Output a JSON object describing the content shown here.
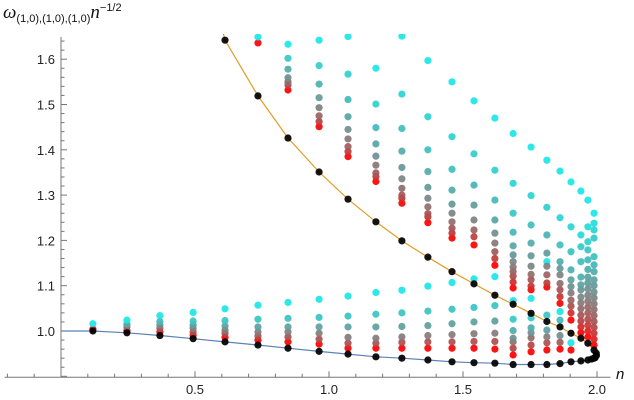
{
  "chart_data": {
    "type": "scatter",
    "title": "",
    "xlabel": "n",
    "ylabel": {
      "symbol": "ω",
      "subscript": "(1,0),(1,0),(1,0)",
      "base": "n",
      "exponent": "−1/2"
    },
    "xlim": [
      -0.21,
      2.05
    ],
    "ylim": [
      0.898,
      1.649
    ],
    "x_ticks": [
      "0.5",
      "1.0",
      "1.5",
      "2.0"
    ],
    "x_tick_values": [
      0.5,
      1.0,
      1.5,
      2.0
    ],
    "y_ticks": [
      "1.0",
      "1.1",
      "1.2",
      "1.3",
      "1.4",
      "1.5",
      "1.6"
    ],
    "y_tick_values": [
      1.0,
      1.1,
      1.2,
      1.3,
      1.4,
      1.5,
      1.6
    ],
    "grid": false,
    "colors": {
      "branch_points": "#000000",
      "lower_curve": "#5E81B5",
      "upper_curve": "#E19C24",
      "gradient": [
        "#FF0000",
        "#B04848",
        "#808080",
        "#4BB0B0",
        "#1AE6E6"
      ]
    },
    "lower_curve": [
      [
        0,
        1.0
      ],
      [
        0.119,
        1.0
      ],
      [
        0.246,
        0.996
      ],
      [
        0.369,
        0.99
      ],
      [
        0.493,
        0.983
      ],
      [
        0.612,
        0.976
      ],
      [
        0.735,
        0.969
      ],
      [
        0.847,
        0.962
      ],
      [
        0.963,
        0.955
      ],
      [
        1.071,
        0.949
      ],
      [
        1.175,
        0.943
      ],
      [
        1.272,
        0.94
      ],
      [
        1.369,
        0.936
      ],
      [
        1.459,
        0.932
      ],
      [
        1.541,
        0.93
      ],
      [
        1.619,
        0.929
      ],
      [
        1.687,
        0.926
      ],
      [
        1.754,
        0.926
      ],
      [
        1.813,
        0.926
      ],
      [
        1.862,
        0.928
      ],
      [
        1.903,
        0.932
      ],
      [
        1.94,
        0.934
      ],
      [
        1.966,
        0.936
      ],
      [
        1.989,
        0.94
      ]
    ],
    "upper_curve": [
      [
        0.6,
        1.67
      ],
      [
        0.612,
        1.642
      ],
      [
        0.735,
        1.519
      ],
      [
        0.847,
        1.426
      ],
      [
        0.963,
        1.351
      ],
      [
        1.071,
        1.291
      ],
      [
        1.175,
        1.241
      ],
      [
        1.272,
        1.199
      ],
      [
        1.369,
        1.163
      ],
      [
        1.459,
        1.131
      ],
      [
        1.541,
        1.104
      ],
      [
        1.619,
        1.079
      ],
      [
        1.687,
        1.059
      ],
      [
        1.754,
        1.039
      ],
      [
        1.813,
        1.021
      ],
      [
        1.862,
        1.009
      ],
      [
        1.903,
        0.995
      ],
      [
        1.94,
        0.984
      ],
      [
        1.966,
        0.973
      ],
      [
        1.989,
        0.958
      ]
    ],
    "turn_points": [
      [
        1.997,
        0.951
      ],
      [
        1.998,
        0.946
      ],
      [
        1.993,
        0.941
      ],
      [
        1.98,
        0.938
      ]
    ],
    "columns": [
      {
        "n": 0.119,
        "lower": 1.0,
        "lower_cluster": [
          1.004,
          1.016
        ],
        "upper": null,
        "upper_cluster": []
      },
      {
        "n": 0.246,
        "lower": 0.996,
        "lower_cluster": [
          1.001,
          1.009,
          1.015,
          1.024
        ],
        "upper": null,
        "upper_cluster": []
      },
      {
        "n": 0.369,
        "lower": 0.99,
        "lower_cluster": [
          0.998,
          1.006,
          1.013,
          1.021,
          1.034
        ],
        "upper": null,
        "upper_cluster": []
      },
      {
        "n": 0.493,
        "lower": 0.983,
        "lower_cluster": [
          0.991,
          0.998,
          1.006,
          1.013,
          1.022,
          1.041
        ],
        "upper": null,
        "upper_cluster": []
      },
      {
        "n": 0.612,
        "lower": 0.976,
        "lower_cluster": [
          0.986,
          0.995,
          1.002,
          1.011,
          1.023,
          1.049
        ],
        "upper": 1.642,
        "upper_cluster": []
      },
      {
        "n": 0.735,
        "lower": 0.969,
        "lower_cluster": [
          0.98,
          0.989,
          0.998,
          1.009,
          1.026,
          1.057
        ],
        "upper": 1.519,
        "upper_cluster": [
          1.636,
          1.649
        ]
      },
      {
        "n": 0.847,
        "lower": 0.962,
        "lower_cluster": [
          0.976,
          0.987,
          0.998,
          1.009,
          1.028,
          1.063
        ],
        "upper": 1.426,
        "upper_cluster": [
          1.532,
          1.543,
          1.55,
          1.559,
          1.578,
          1.602,
          1.633
        ]
      },
      {
        "n": 0.963,
        "lower": 0.955,
        "lower_cluster": [
          0.971,
          0.982,
          0.995,
          1.009,
          1.03,
          1.07
        ],
        "upper": 1.351,
        "upper_cluster": [
          1.451,
          1.462,
          1.475,
          1.493,
          1.515,
          1.545,
          1.586,
          1.642
        ]
      },
      {
        "n": 1.071,
        "lower": 0.949,
        "lower_cluster": [
          0.962,
          0.973,
          0.986,
          1.009,
          1.033,
          1.077
        ],
        "upper": 1.291,
        "upper_cluster": [
          1.385,
          1.396,
          1.407,
          1.424,
          1.445,
          1.473,
          1.511,
          1.567,
          1.65
        ]
      },
      {
        "n": 1.175,
        "lower": 0.943,
        "lower_cluster": [
          0.962,
          0.973,
          0.984,
          1.009,
          1.037,
          1.085
        ],
        "upper": 1.241,
        "upper_cluster": [
          1.33,
          1.341,
          1.349,
          1.366,
          1.386,
          1.413,
          1.449,
          1.501,
          1.58
        ]
      },
      {
        "n": 1.272,
        "lower": 0.94,
        "lower_cluster": [
          0.962,
          0.975,
          0.987,
          1.01,
          1.04,
          1.09
        ],
        "upper": 1.199,
        "upper_cluster": [
          1.282,
          1.293,
          1.3,
          1.315,
          1.336,
          1.361,
          1.397,
          1.447,
          1.523,
          1.651
        ]
      },
      {
        "n": 1.369,
        "lower": 0.936,
        "lower_cluster": [
          0.962,
          0.976,
          0.99,
          1.012,
          1.044,
          1.099
        ],
        "upper": 1.163,
        "upper_cluster": [
          1.239,
          1.252,
          1.259,
          1.274,
          1.293,
          1.317,
          1.352,
          1.4,
          1.473,
          1.597
        ]
      },
      {
        "n": 1.459,
        "lower": 0.932,
        "lower_cluster": [
          0.962,
          0.976,
          0.992,
          1.016,
          1.048,
          1.107
        ],
        "upper": 1.131,
        "upper_cluster": [
          1.205,
          1.216,
          1.227,
          1.241,
          1.26,
          1.28,
          1.311,
          1.357,
          1.429,
          1.55
        ]
      },
      {
        "n": 1.541,
        "lower": 0.93,
        "lower_cluster": [
          0.962,
          0.977,
          0.994,
          1.02,
          1.052,
          1.115
        ],
        "upper": 1.104,
        "upper_cluster": [
          1.19,
          1.208,
          1.223,
          1.245,
          1.278,
          1.322,
          1.391,
          1.508
        ]
      },
      {
        "n": 1.619,
        "lower": 0.929,
        "lower_cluster": [
          0.96,
          0.977,
          0.995,
          1.022,
          1.056,
          1.12
        ],
        "upper": 1.079,
        "upper_cluster": [
          1.145,
          1.16,
          1.175,
          1.194,
          1.216,
          1.245,
          1.289,
          1.355,
          1.47
        ]
      },
      {
        "n": 1.687,
        "lower": 0.926,
        "lower_cluster": [
          0.947,
          0.962,
          0.976,
          0.984,
          1.001,
          1.026,
          1.067
        ],
        "upper": 1.059,
        "upper_cluster": [
          1.095,
          1.108,
          1.121,
          1.131,
          1.141,
          1.153,
          1.168,
          1.188,
          1.218,
          1.26,
          1.326,
          1.436
        ]
      },
      {
        "n": 1.754,
        "lower": 0.926,
        "lower_cluster": [
          0.954,
          0.969,
          0.985,
          0.996,
          1.007,
          1.029,
          1.072
        ],
        "upper": 1.039,
        "upper_cluster": [
          1.091,
          1.099,
          1.113,
          1.125,
          1.143,
          1.166,
          1.194,
          1.234,
          1.299,
          1.406
        ]
      },
      {
        "n": 1.813,
        "lower": 0.926,
        "lower_cluster": [
          0.958,
          0.974,
          0.987,
          1.002,
          1.035,
          1.153
        ],
        "upper": 1.021,
        "upper_cluster": [
          1.097,
          1.106,
          1.124,
          1.143,
          1.172,
          1.212,
          1.273,
          1.377
        ]
      },
      {
        "n": 1.862,
        "lower": 0.928,
        "lower_cluster": [
          0.96,
          0.975,
          0.99,
          1.024,
          1.043
        ],
        "upper": 1.009,
        "upper_cluster": [
          1.061,
          1.076,
          1.091,
          1.105,
          1.124,
          1.138,
          1.153,
          1.19,
          1.25,
          1.353
        ]
      },
      {
        "n": 1.903,
        "lower": 0.932,
        "lower_cluster": [
          0.958,
          0.974
        ],
        "upper": 0.995,
        "upper_cluster": [
          1.024,
          1.04,
          1.055,
          1.068,
          1.084,
          1.098,
          1.113,
          1.135,
          1.175,
          1.23,
          1.329
        ]
      },
      {
        "n": 1.94,
        "lower": 0.934,
        "lower_cluster": [],
        "upper": 0.984,
        "upper_cluster": [
          0.996,
          1.009,
          1.022,
          1.035,
          1.049,
          1.062,
          1.075,
          1.091,
          1.102,
          1.119,
          1.153,
          1.186,
          1.212,
          1.309
        ]
      },
      {
        "n": 1.966,
        "lower": 0.936,
        "lower_cluster": [],
        "upper": 0.973,
        "upper_cluster": [
          0.987,
          1.0,
          1.013,
          1.026,
          1.04,
          1.053,
          1.066,
          1.079,
          1.093,
          1.106,
          1.119,
          1.136,
          1.157,
          1.179,
          1.197,
          1.23,
          1.289
        ]
      },
      {
        "n": 1.989,
        "lower": 0.94,
        "lower_cluster": [],
        "upper": 0.958,
        "upper_cluster": [
          0.969,
          0.982,
          0.995,
          1.008,
          1.021,
          1.034,
          1.047,
          1.06,
          1.073,
          1.086,
          1.1,
          1.113,
          1.131,
          1.146,
          1.164,
          1.205,
          1.223,
          1.238,
          1.26
        ]
      }
    ]
  }
}
